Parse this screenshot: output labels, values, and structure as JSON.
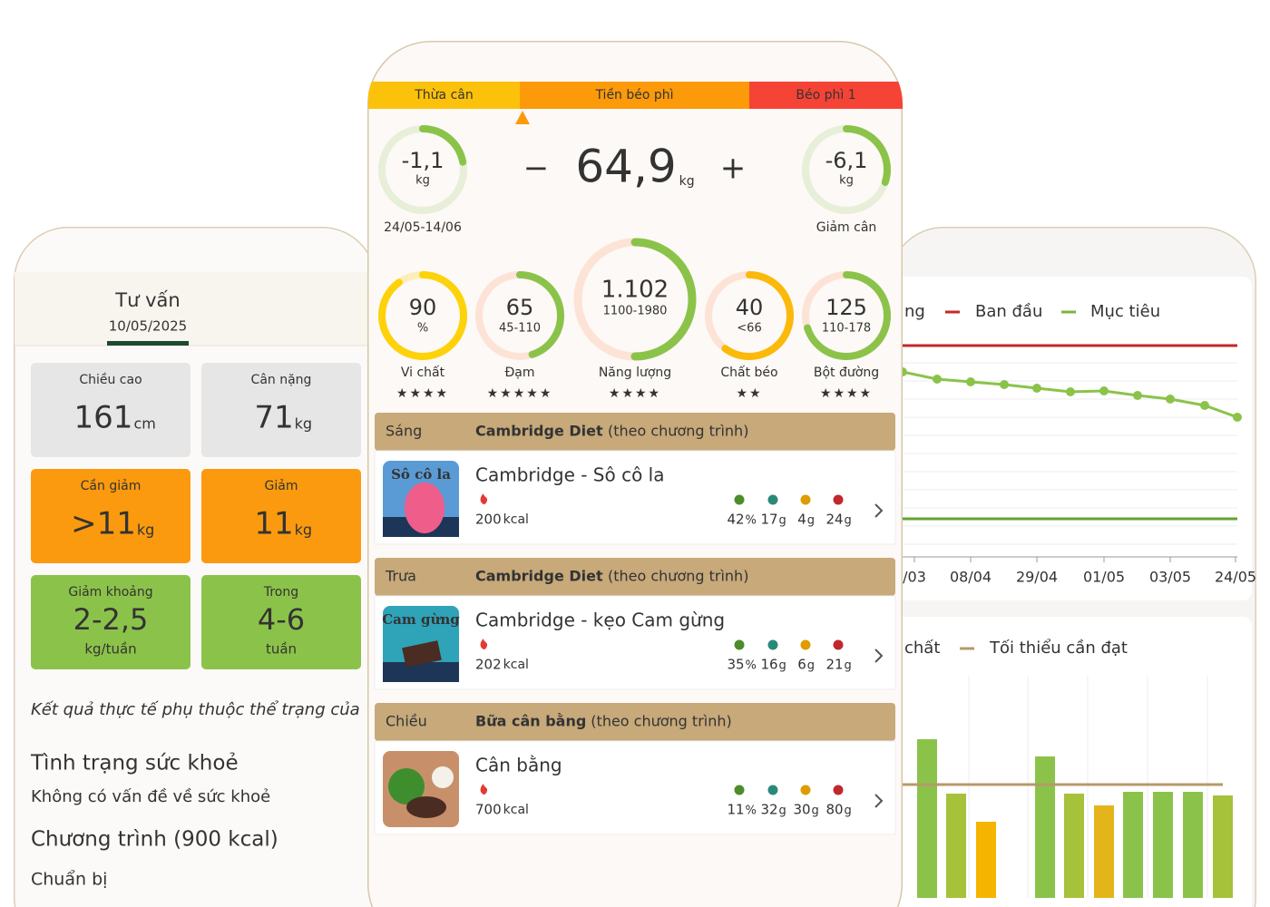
{
  "consult": {
    "title": "Tư vấn",
    "date": "10/05/2025",
    "cards": [
      {
        "label": "Chiều cao",
        "value": "161",
        "unit": "cm"
      },
      {
        "label": "Cân nặng",
        "value": "71",
        "unit": "kg"
      },
      {
        "label": "Cần giảm",
        "value": ">11",
        "unit": "kg"
      },
      {
        "label": "Giảm",
        "value": "11",
        "unit": "kg"
      },
      {
        "label": "Giảm khoảng",
        "value": "2-2,5",
        "unit": "kg/tuần"
      },
      {
        "label": "Trong",
        "value": "4-6",
        "unit": "tuần"
      }
    ],
    "note": "Kết quả thực tế phụ thuộc thể trạng của",
    "health_title": "Tình trạng sức khoẻ",
    "health_status": "Không có vấn đề về sức khoẻ",
    "program": "Chương trình (900 kcal)",
    "prep": "Chuẩn bị"
  },
  "bmi": {
    "segments": [
      "Thừa cân",
      "Tiền béo phì",
      "Béo phì 1"
    ]
  },
  "weight": {
    "left": {
      "value": "-1,1",
      "unit": "kg",
      "caption": "24/05-14/06"
    },
    "current": {
      "value": "64,9",
      "unit": "kg",
      "minus": "−",
      "plus": "+"
    },
    "right": {
      "value": "-6,1",
      "unit": "kg",
      "caption": "Giảm cân"
    }
  },
  "nutrients": [
    {
      "value": "90",
      "sub": "%",
      "label": "Vi chất",
      "stars": "★★★★"
    },
    {
      "value": "65",
      "sub": "45-110",
      "label": "Đạm",
      "stars": "★★★★★"
    },
    {
      "value": "1.102",
      "sub": "1100-1980",
      "label": "Năng lượng",
      "stars": "★★★★"
    },
    {
      "value": "40",
      "sub": "<66",
      "label": "Chất béo",
      "stars": "★★"
    },
    {
      "value": "125",
      "sub": "110-178",
      "label": "Bột đường",
      "stars": "★★★★"
    }
  ],
  "meals": [
    {
      "slot": "Sáng",
      "plan": "Cambridge Diet",
      "note": "(theo chương trình)",
      "thumb": "Sô cô la",
      "name": "Cambridge - Sô cô la",
      "kcal": "200",
      "kcal_unit": "kcal",
      "macros": [
        {
          "value": "42",
          "unit": "%"
        },
        {
          "value": "17",
          "unit": "g"
        },
        {
          "value": "4",
          "unit": "g"
        },
        {
          "value": "24",
          "unit": "g"
        }
      ]
    },
    {
      "slot": "Trưa",
      "plan": "Cambridge Diet",
      "note": "(theo chương trình)",
      "thumb": "Cam gừng",
      "name": "Cambridge - kẹo Cam gừng",
      "kcal": "202",
      "kcal_unit": "kcal",
      "macros": [
        {
          "value": "35",
          "unit": "%"
        },
        {
          "value": "16",
          "unit": "g"
        },
        {
          "value": "6",
          "unit": "g"
        },
        {
          "value": "21",
          "unit": "g"
        }
      ]
    },
    {
      "slot": "Chiều",
      "plan": "Bữa cân bằng",
      "note": "(theo chương trình)",
      "thumb": "",
      "name": "Cân bằng",
      "kcal": "700",
      "kcal_unit": "kcal",
      "macros": [
        {
          "value": "11",
          "unit": "%"
        },
        {
          "value": "32",
          "unit": "g"
        },
        {
          "value": "30",
          "unit": "g"
        },
        {
          "value": "80",
          "unit": "g"
        }
      ]
    }
  ],
  "weight_chart": {
    "legend": [
      "ng",
      "Ban đầu",
      "Mục tiêu"
    ],
    "x_labels": [
      "/03",
      "08/04",
      "29/04",
      "01/05",
      "03/05",
      "24/05"
    ]
  },
  "nutrient_chart": {
    "legend": [
      "chất",
      "Tối thiểu cần đạt"
    ]
  }
}
